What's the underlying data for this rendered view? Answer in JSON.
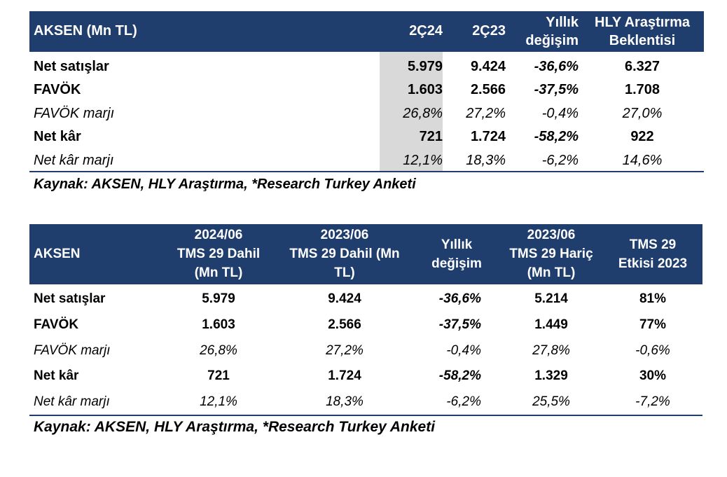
{
  "table1": {
    "headers": {
      "label": "AKSEN (Mn TL)",
      "col1": "2Ç24",
      "col2": "2Ç23",
      "col3_line1": "Yıllık",
      "col3_line2": "değişim",
      "col4_line1": "HLY Araştırma",
      "col4_line2": "Beklentisi"
    },
    "rows": [
      {
        "label": "Net satışlar",
        "v1": "5.979",
        "v2": "9.424",
        "v3": "-36,6%",
        "v4": "6.327"
      },
      {
        "label": "FAVÖK",
        "v1": "1.603",
        "v2": "2.566",
        "v3": "-37,5%",
        "v4": "1.708"
      },
      {
        "label": "FAVÖK marjı",
        "v1": "26,8%",
        "v2": "27,2%",
        "v3": "-0,4%",
        "v4": "27,0%"
      },
      {
        "label": "Net kâr",
        "v1": "721",
        "v2": "1.724",
        "v3": "-58,2%",
        "v4": "922"
      },
      {
        "label": "Net kâr marjı",
        "v1": "12,1%",
        "v2": "18,3%",
        "v3": "-6,2%",
        "v4": "14,6%"
      }
    ],
    "source": "Kaynak: AKSEN, HLY Araştırma, *Research Turkey Anketi"
  },
  "table2": {
    "headers": {
      "label": "AKSEN",
      "col1_line1": "2024/06",
      "col1_line2": "TMS 29 Dahil",
      "col1_line3": "(Mn TL)",
      "col2_line1": "2023/06",
      "col2_line2": "TMS 29 Dahil (Mn",
      "col2_line3": "TL)",
      "col3_line1": "Yıllık",
      "col3_line2": "değişim",
      "col4_line1": "2023/06",
      "col4_line2": "TMS 29 Hariç",
      "col4_line3": "(Mn TL)",
      "col5_line1": "TMS 29",
      "col5_line2": "Etkisi 2023"
    },
    "rows": [
      {
        "label": "Net satışlar",
        "v1": "5.979",
        "v2": "9.424",
        "v3": "-36,6%",
        "v4": "5.214",
        "v5": "81%"
      },
      {
        "label": "FAVÖK",
        "v1": "1.603",
        "v2": "2.566",
        "v3": "-37,5%",
        "v4": "1.449",
        "v5": "77%"
      },
      {
        "label": "FAVÖK marjı",
        "v1": "26,8%",
        "v2": "27,2%",
        "v3": "-0,4%",
        "v4": "27,8%",
        "v5": "-0,6%"
      },
      {
        "label": "Net kâr",
        "v1": "721",
        "v2": "1.724",
        "v3": "-58,2%",
        "v4": "1.329",
        "v5": "30%"
      },
      {
        "label": "Net kâr marjı",
        "v1": "12,1%",
        "v2": "18,3%",
        "v3": "-6,2%",
        "v4": "25,5%",
        "v5": "-7,2%"
      }
    ],
    "source": "Kaynak: AKSEN, HLY Araştırma, *Research Turkey Anketi"
  },
  "colors": {
    "header_bg": "#1f3e6e",
    "shade": "#d9d9d9"
  }
}
